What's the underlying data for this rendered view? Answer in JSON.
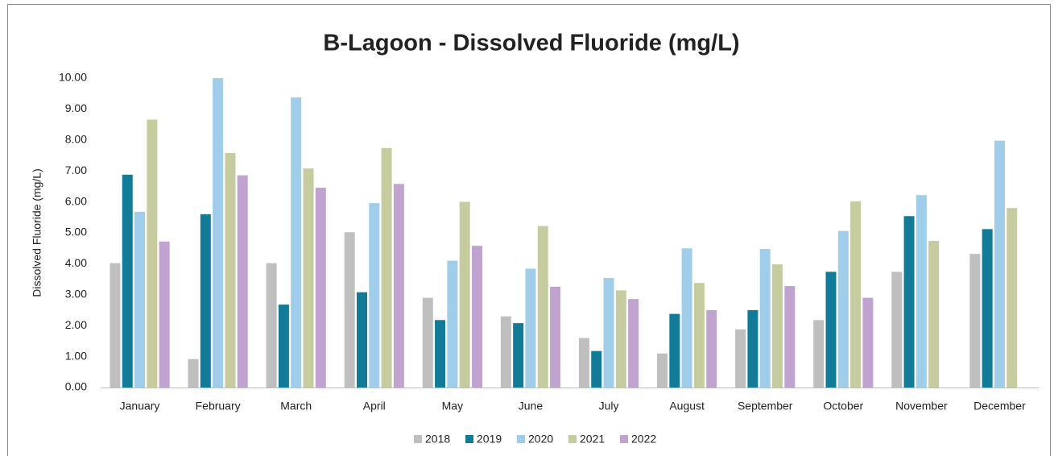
{
  "chart_data": {
    "type": "bar",
    "title": "B-Lagoon - Dissolved Fluoride (mg/L)",
    "y_label": "Dissolved Fluoride  (mg/L)",
    "categories": [
      "January",
      "February",
      "March",
      "April",
      "May",
      "June",
      "July",
      "August",
      "September",
      "October",
      "November",
      "December"
    ],
    "series": [
      {
        "name": "2018",
        "color": "#bfbfbf",
        "values": [
          4.02,
          0.92,
          4.02,
          5.02,
          2.9,
          2.3,
          1.6,
          1.1,
          1.88,
          2.18,
          3.74,
          4.32
        ]
      },
      {
        "name": "2019",
        "color": "#127b98",
        "values": [
          6.88,
          5.6,
          2.68,
          3.08,
          2.18,
          2.08,
          1.18,
          2.38,
          2.5,
          3.74,
          5.54,
          5.12
        ]
      },
      {
        "name": "2020",
        "color": "#9fcdea",
        "values": [
          5.68,
          10.0,
          9.38,
          5.96,
          4.1,
          3.84,
          3.54,
          4.5,
          4.48,
          5.06,
          6.22,
          7.98
        ]
      },
      {
        "name": "2021",
        "color": "#c6cc9f",
        "values": [
          8.66,
          7.58,
          7.08,
          7.74,
          6.0,
          5.22,
          3.14,
          3.38,
          3.98,
          6.02,
          4.74,
          5.8
        ]
      },
      {
        "name": "2022",
        "color": "#c0a4cf",
        "values": [
          4.72,
          6.86,
          6.46,
          6.58,
          4.58,
          3.26,
          2.86,
          2.5,
          3.28,
          2.9,
          null,
          null
        ]
      }
    ],
    "ylim": [
      0,
      10
    ],
    "yticks": [
      {
        "value": 0,
        "label": "0.00"
      },
      {
        "value": 1,
        "label": "1.00"
      },
      {
        "value": 2,
        "label": "2.00"
      },
      {
        "value": 3,
        "label": "3.00"
      },
      {
        "value": 4,
        "label": "4.00"
      },
      {
        "value": 5,
        "label": "5.00"
      },
      {
        "value": 6,
        "label": "6.00"
      },
      {
        "value": 7,
        "label": "7.00"
      },
      {
        "value": 8,
        "label": "8.00"
      },
      {
        "value": 9,
        "label": "9.00"
      },
      {
        "value": 10,
        "label": "10.00"
      }
    ],
    "legend": "bottom"
  }
}
